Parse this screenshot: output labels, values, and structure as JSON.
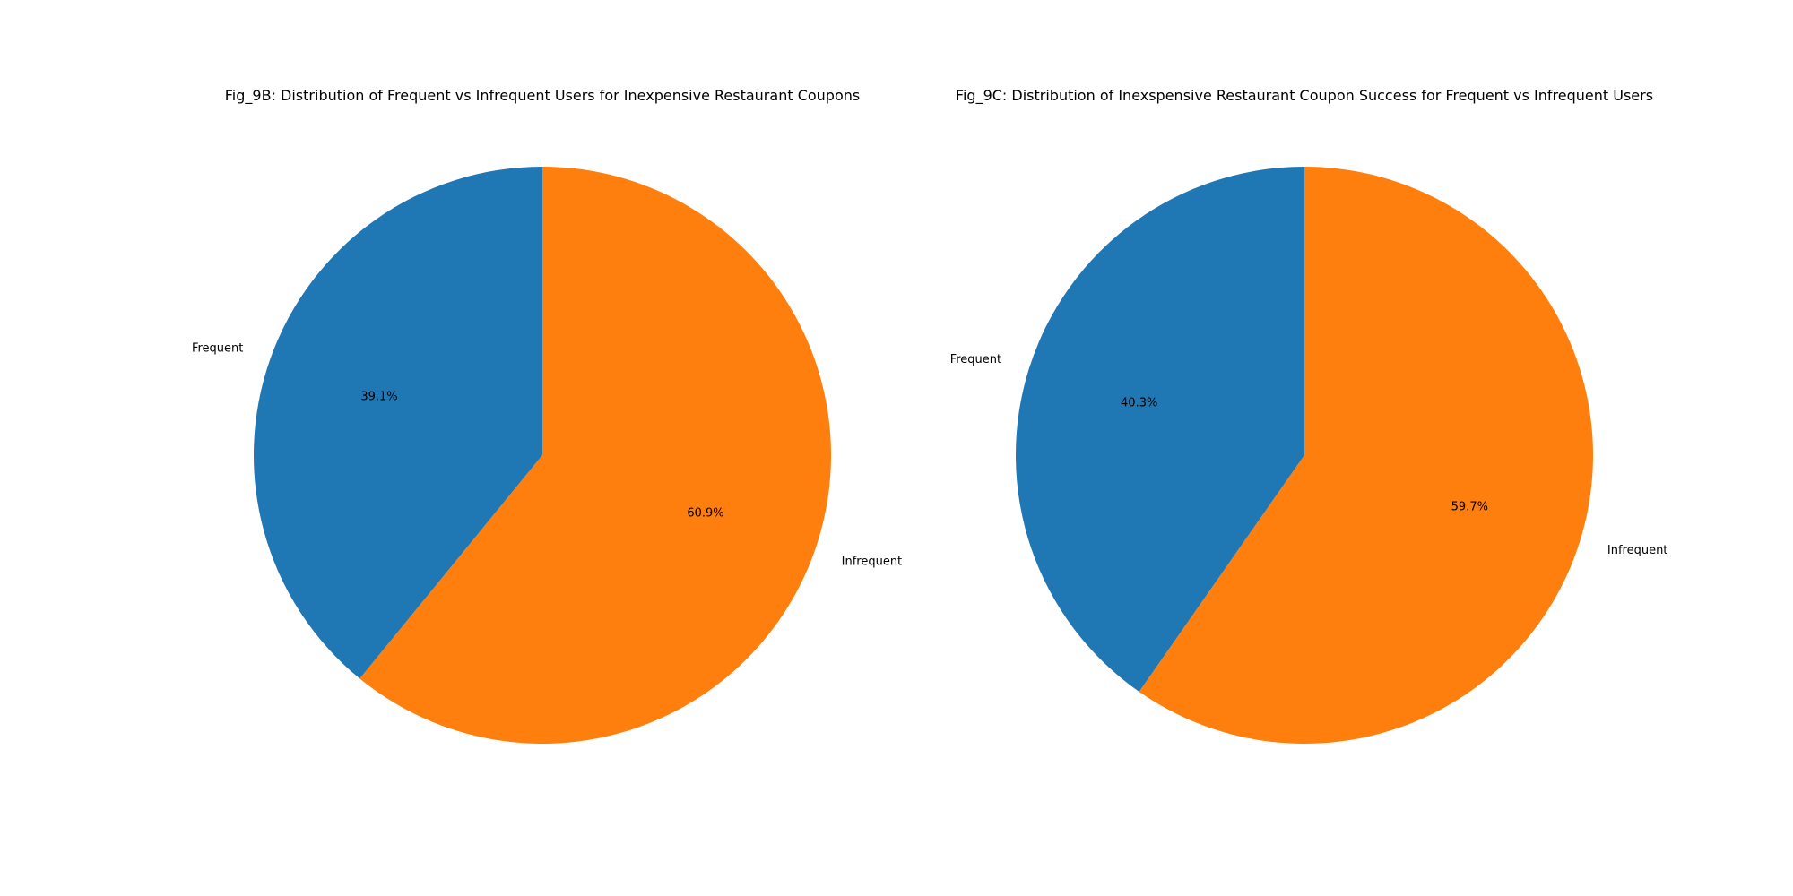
{
  "chart_data": [
    {
      "type": "pie",
      "title": "Fig_9B: Distribution of Frequent vs Infrequent Users for Inexpensive Restaurant Coupons",
      "categories": [
        "Frequent",
        "Infrequent"
      ],
      "values": [
        39.1,
        60.9
      ],
      "value_labels": [
        "39.1%",
        "60.9%"
      ],
      "colors": [
        "#1f77b4",
        "#ff7f0e"
      ],
      "start_angle_deg": 90,
      "direction": "counterclockwise"
    },
    {
      "type": "pie",
      "title": "Fig_9C: Distribution of Inexspensive Restaurant Coupon Success for Frequent vs Infrequent Users",
      "categories": [
        "Frequent",
        "Infrequent"
      ],
      "values": [
        40.3,
        59.7
      ],
      "value_labels": [
        "40.3%",
        "59.7%"
      ],
      "colors": [
        "#1f77b4",
        "#ff7f0e"
      ],
      "start_angle_deg": 90,
      "direction": "counterclockwise"
    }
  ]
}
